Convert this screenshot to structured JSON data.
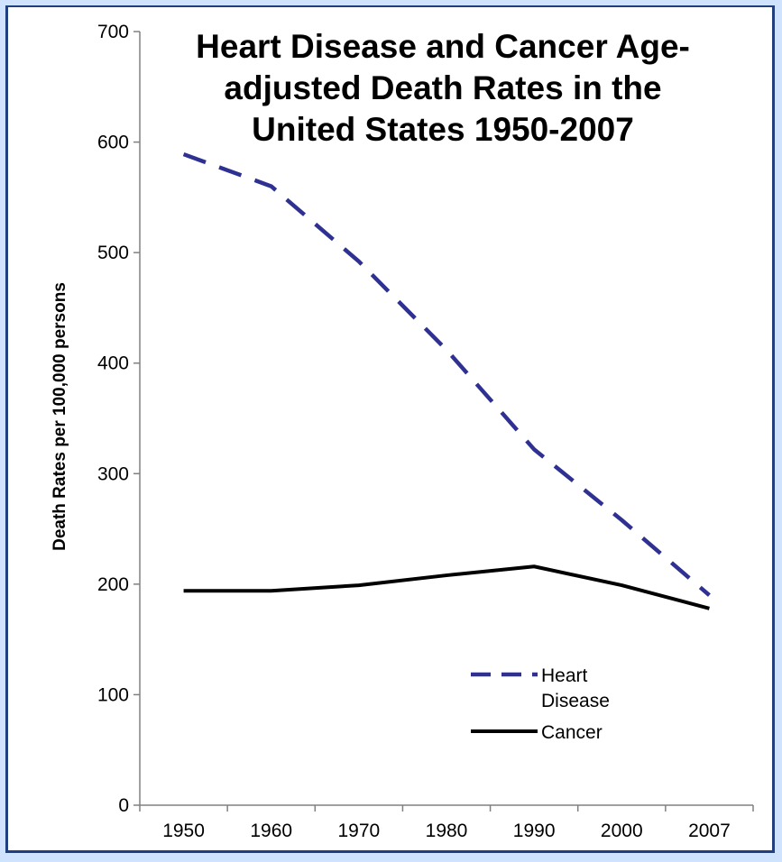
{
  "chart_data": {
    "type": "line",
    "title_lines": [
      "Heart Disease and Cancer Age-",
      "adjusted Death Rates in the",
      "United States 1950-2007"
    ],
    "xlabel": "",
    "ylabel": "Death Rates per 100,000 persons",
    "categories": [
      "1950",
      "1960",
      "1970",
      "1980",
      "1990",
      "2000",
      "2007"
    ],
    "ylim": [
      0,
      700
    ],
    "yticks": [
      "0",
      "100",
      "200",
      "300",
      "400",
      "500",
      "600",
      "700"
    ],
    "series": [
      {
        "name_lines": [
          "Heart",
          "Disease"
        ],
        "values": [
          589,
          560,
          492,
          412,
          322,
          258,
          190
        ],
        "color": "#2e3192",
        "style": "dashed"
      },
      {
        "name_lines": [
          "Cancer"
        ],
        "values": [
          194,
          194,
          199,
          208,
          216,
          199,
          178
        ],
        "color": "#000000",
        "style": "solid"
      }
    ],
    "grid": false,
    "legend_position": "bottom-right"
  },
  "colors": {
    "background": "#cfe3ff",
    "border": "#1f3f7f"
  }
}
